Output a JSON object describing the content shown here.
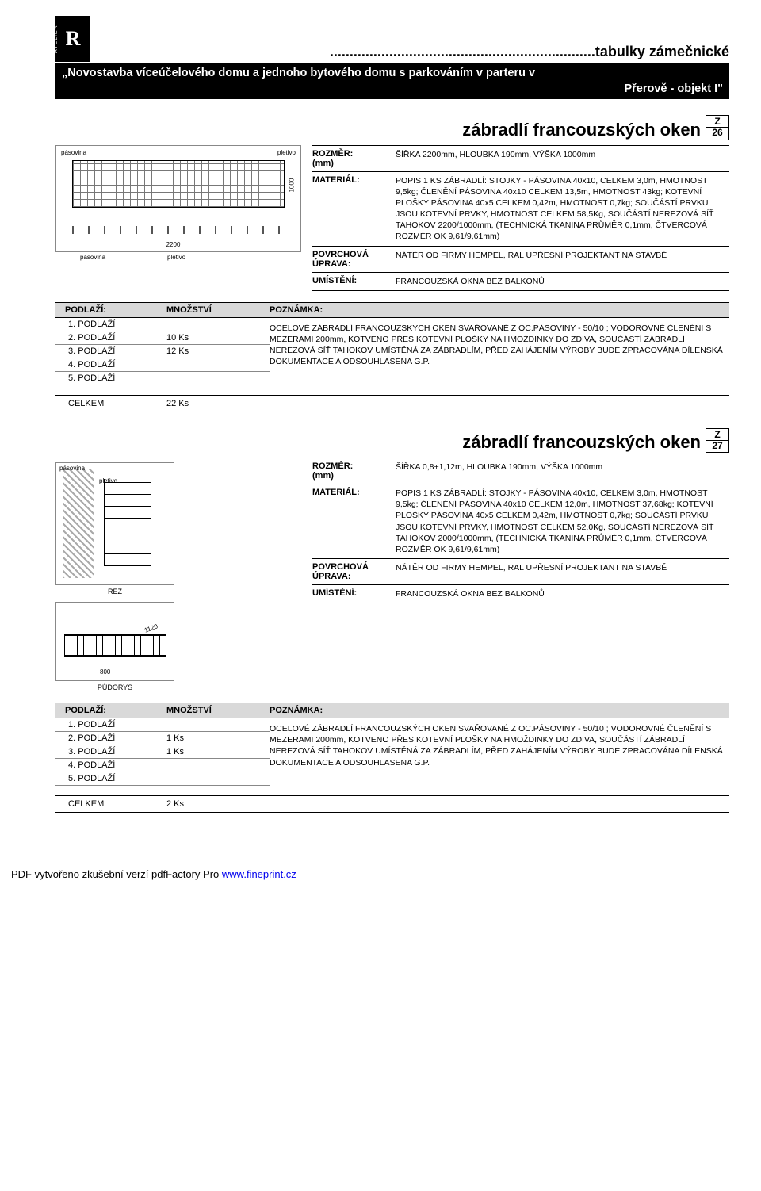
{
  "header": {
    "logo_text": "R",
    "logo_side": "ATELIER",
    "dots": "...................................................................",
    "title_suffix": "tabulky zámečnické",
    "project_line1": "„Novostavba víceúčelového domu a jednoho bytového domu s parkováním v parteru v",
    "project_line2": "Přerově - objekt I\""
  },
  "labels": {
    "rozmer": "ROZMĚR:",
    "rozmer_unit": "(mm)",
    "material": "MATERIÁL:",
    "povrch": "POVRCHOVÁ ÚPRAVA:",
    "umisteni": "UMÍSTĚNÍ:",
    "podlazi": "PODLAŽÍ:",
    "mnozstvi": "MNOŽSTVÍ",
    "poznamka": "POZNÁMKA:",
    "celkem": "CELKEM",
    "rez": "ŘEZ",
    "pudorys": "PŮDORYS",
    "pasovina": "pásovina",
    "pletivo": "pletivo"
  },
  "item26": {
    "title": "zábradlí francouzských oken",
    "badge_z": "Z",
    "badge_n": "26",
    "rozmer": "ŠÍŘKA 2200mm, HLOUBKA 190mm, VÝŠKA 1000mm",
    "material": "POPIS 1 KS ZÁBRADLÍ:  STOJKY - PÁSOVINA 40x10, CELKEM 3,0m, HMOTNOST 9,5kg; ČLENĚNÍ PÁSOVINA 40x10 CELKEM 13,5m, HMOTNOST 43kg; KOTEVNÍ PLOŠKY PÁSOVINA 40x5 CELKEM 0,42m, HMOTNOST 0,7kg; SOUČÁSTÍ PRVKU JSOU KOTEVNÍ PRVKY, HMOTNOST CELKEM 58,5Kg,  SOUČÁSTÍ NEREZOVÁ SÍŤ TAHOKOV 2200/1000mm, (TECHNICKÁ TKANINA PRŮMĚR 0,1mm, ČTVERCOVÁ ROZMĚR OK 9,61/9,61mm)",
    "povrch": "NÁTĚR OD FIRMY HEMPEL,  RAL UPŘESNÍ PROJEKTANT NA STAVBĚ",
    "umisteni": "FRANCOUZSKÁ OKNA BEZ BALKONŮ",
    "dim_w": "2200",
    "dim_h": "1000",
    "floors": [
      {
        "f": "1. PODLAŽÍ",
        "q": ""
      },
      {
        "f": "2. PODLAŽÍ",
        "q": "10 Ks"
      },
      {
        "f": "3. PODLAŽÍ",
        "q": "12 Ks"
      },
      {
        "f": "4. PODLAŽÍ",
        "q": ""
      },
      {
        "f": "5. PODLAŽÍ",
        "q": ""
      }
    ],
    "note": "OCELOVÉ ZÁBRADLÍ FRANCOUZSKÝCH OKEN SVAŘOVANÉ Z OC.PÁSOVINY - 50/10 ; VODOROVNÉ ČLENĚNÍ S MEZERAMI 200mm, KOTVENO PŘES KOTEVNÍ PLOŠKY NA HMOŽDINKY DO ZDIVA, SOUČÁSTÍ ZÁBRADLÍ NEREZOVÁ SÍŤ TAHOKOV UMÍSTĚNÁ ZA ZÁBRADLÍM, PŘED ZAHÁJENÍM VÝROBY BUDE ZPRACOVÁNA DÍLENSKÁ DOKUMENTACE A ODSOUHLASENA G.P.",
    "total": "22 Ks"
  },
  "item27": {
    "title": "zábradlí francouzských oken",
    "badge_z": "Z",
    "badge_n": "27",
    "rozmer": "ŠÍŘKA 0,8+1,12m, HLOUBKA 190mm, VÝŠKA 1000mm",
    "material": "POPIS 1 KS ZÁBRADLÍ:  STOJKY - PÁSOVINA 40x10, CELKEM 3,0m, HMOTNOST 9,5kg; ČLENĚNÍ PÁSOVINA 40x10 CELKEM 12,0m, HMOTNOST 37,68kg; KOTEVNÍ PLOŠKY PÁSOVINA 40x5 CELKEM 0,42m, HMOTNOST 0,7kg; SOUČÁSTÍ PRVKU JSOU KOTEVNÍ PRVKY, HMOTNOST CELKEM 52,0Kg,  SOUČÁSTÍ NEREZOVÁ SÍŤ TAHOKOV 2000/1000mm, (TECHNICKÁ TKANINA PRŮMĚR 0,1mm, ČTVERCOVÁ ROZMĚR OK 9,61/9,61mm)",
    "povrch": "NÁTĚR OD FIRMY HEMPEL,  RAL UPŘESNÍ PROJEKTANT NA STAVBĚ",
    "umisteni": "FRANCOUZSKÁ OKNA BEZ BALKONŮ",
    "dim800": "800",
    "dim1120": "1120",
    "floors": [
      {
        "f": "1. PODLAŽÍ",
        "q": ""
      },
      {
        "f": "2. PODLAŽÍ",
        "q": "1 Ks"
      },
      {
        "f": "3. PODLAŽÍ",
        "q": "1 Ks"
      },
      {
        "f": "4. PODLAŽÍ",
        "q": ""
      },
      {
        "f": "5. PODLAŽÍ",
        "q": ""
      }
    ],
    "note": "OCELOVÉ ZÁBRADLÍ FRANCOUZSKÝCH OKEN SVAŘOVANÉ Z OC.PÁSOVINY - 50/10 ; VODOROVNÉ ČLENĚNÍ S MEZERAMI 200mm, KOTVENO PŘES KOTEVNÍ PLOŠKY NA HMOŽDINKY DO ZDIVA, SOUČÁSTÍ ZÁBRADLÍ NEREZOVÁ SÍŤ TAHOKOV UMÍSTĚNÁ ZA ZÁBRADLÍM, PŘED ZAHÁJENÍM VÝROBY BUDE ZPRACOVÁNA DÍLENSKÁ DOKUMENTACE A ODSOUHLASENA G.P.",
    "total": "2 Ks"
  },
  "footer": {
    "text": "PDF vytvořeno zkušební verzí pdfFactory Pro ",
    "link": "www.fineprint.cz"
  }
}
